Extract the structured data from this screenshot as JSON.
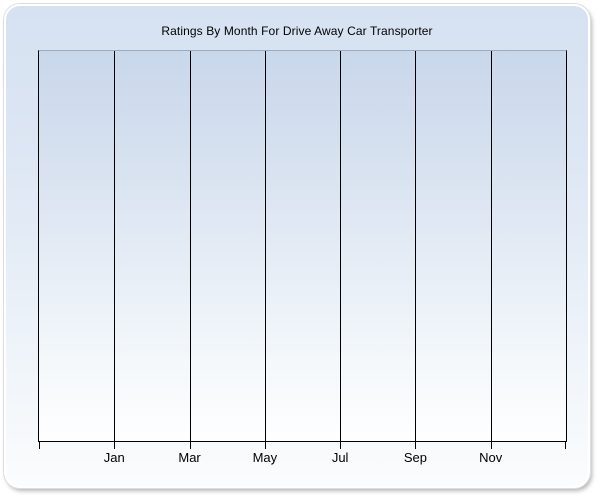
{
  "chart_data": {
    "type": "line",
    "title": "Ratings By Month For Drive Away Car Transporter",
    "xlabel": "",
    "ylabel": "",
    "x_tick_labels": [
      "Jan",
      "Mar",
      "May",
      "Jul",
      "Sep",
      "Nov"
    ],
    "series": [],
    "grid": "vertical-only",
    "legend": "none",
    "plot_empty": true
  },
  "colors": {
    "panel_gradient_top": "#d6e2f2",
    "panel_gradient_bottom": "#fbfcfd",
    "plot_gradient_top": "#c9d7eb",
    "plot_gradient_bottom": "#fefefe",
    "plot_top_border": "#9faabe",
    "gridline": "#000000",
    "title_text": "#000000",
    "axis_label_text": "#000000",
    "panel_border": "#ffffff"
  }
}
